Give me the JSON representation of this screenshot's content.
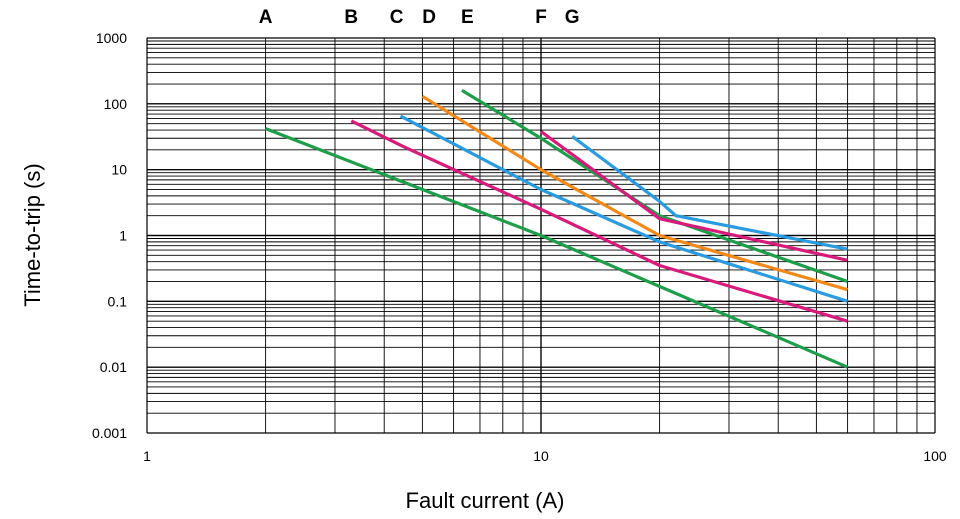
{
  "chart_data": {
    "type": "line",
    "title": "",
    "xlabel": "Fault current (A)",
    "ylabel": "Time-to-trip (s)",
    "x_scale": "log",
    "y_scale": "log",
    "xlim": [
      1,
      100
    ],
    "ylim": [
      0.001,
      1000
    ],
    "grid": true,
    "x_ticks": [
      {
        "value": 1,
        "label": "1"
      },
      {
        "value": 10,
        "label": "10"
      },
      {
        "value": 100,
        "label": "100"
      }
    ],
    "y_ticks": [
      {
        "value": 1000,
        "label": "1000"
      },
      {
        "value": 100,
        "label": "100"
      },
      {
        "value": 10,
        "label": "10"
      },
      {
        "value": 1,
        "label": "1"
      },
      {
        "value": 0.1,
        "label": "0.1"
      },
      {
        "value": 0.01,
        "label": "0.01"
      },
      {
        "value": 0.001,
        "label": "0.001"
      }
    ],
    "curve_labels": [
      {
        "label": "A",
        "x": 2.0
      },
      {
        "label": "B",
        "x": 3.3
      },
      {
        "label": "C",
        "x": 4.3
      },
      {
        "label": "D",
        "x": 5.2
      },
      {
        "label": "E",
        "x": 6.5
      },
      {
        "label": "F",
        "x": 10.0
      },
      {
        "label": "G",
        "x": 12.0
      }
    ],
    "series": [
      {
        "color": "#1e9e4a",
        "points": [
          [
            2.0,
            42
          ],
          [
            10,
            1.0
          ],
          [
            60,
            0.01
          ]
        ]
      },
      {
        "color": "#d81b7a",
        "points": [
          [
            3.3,
            55
          ],
          [
            4.5,
            22
          ],
          [
            10,
            2.5
          ],
          [
            20,
            0.35
          ],
          [
            60,
            0.05
          ]
        ]
      },
      {
        "color": "#2b9be0",
        "points": [
          [
            4.4,
            65
          ],
          [
            10,
            5
          ],
          [
            20,
            0.8
          ],
          [
            60,
            0.1
          ]
        ]
      },
      {
        "color": "#f28a1a",
        "points": [
          [
            5.0,
            130
          ],
          [
            10,
            10
          ],
          [
            20,
            1.0
          ],
          [
            60,
            0.15
          ]
        ]
      },
      {
        "color": "#1e9e4a",
        "points": [
          [
            6.3,
            160
          ],
          [
            10,
            30
          ],
          [
            20,
            2.0
          ],
          [
            60,
            0.2
          ]
        ]
      },
      {
        "color": "#d81b7a",
        "points": [
          [
            10.0,
            38
          ],
          [
            20,
            1.8
          ],
          [
            60,
            0.42
          ]
        ]
      },
      {
        "color": "#2b9be0",
        "points": [
          [
            12.0,
            32
          ],
          [
            20,
            3.3
          ],
          [
            22,
            2.0
          ],
          [
            60,
            0.62
          ]
        ]
      }
    ]
  }
}
